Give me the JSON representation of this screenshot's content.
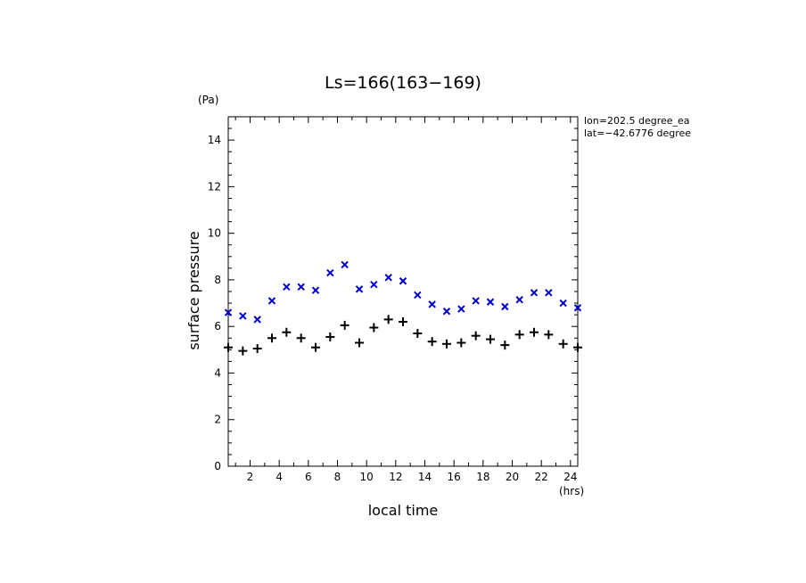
{
  "chart_data": {
    "type": "scatter",
    "title": "Ls=166(163−169)",
    "xlabel": "local time",
    "ylabel": "surface pressure",
    "x_unit": "(hrs)",
    "y_unit": "(Pa)",
    "annotations": [
      "lon=202.5 degree_ea",
      "lat=−42.6776 degree"
    ],
    "xlim": [
      0.5,
      24.5
    ],
    "ylim": [
      0,
      15
    ],
    "x_ticks": [
      2,
      4,
      6,
      8,
      10,
      12,
      14,
      16,
      18,
      20,
      22,
      24
    ],
    "y_ticks": [
      0,
      2,
      4,
      6,
      8,
      10,
      12,
      14
    ],
    "x_tick_labels": [
      "2",
      "4",
      "6",
      "8",
      "10",
      "12",
      "14",
      "16",
      "18",
      "20",
      "22",
      "24"
    ],
    "y_tick_labels": [
      "0",
      "2",
      "4",
      "6",
      "8",
      "10",
      "12",
      "14"
    ],
    "grid": false,
    "series": [
      {
        "marker": "x",
        "color": "#0000cc",
        "x": [
          0.5,
          1.5,
          2.5,
          3.5,
          4.5,
          5.5,
          6.5,
          7.5,
          8.5,
          9.5,
          10.5,
          11.5,
          12.5,
          13.5,
          14.5,
          15.5,
          16.5,
          17.5,
          18.5,
          19.5,
          20.5,
          21.5,
          22.5,
          23.5,
          24.5
        ],
        "values": [
          6.6,
          6.45,
          6.3,
          7.1,
          7.7,
          7.7,
          7.55,
          8.3,
          8.65,
          7.6,
          7.8,
          8.1,
          7.95,
          7.35,
          6.95,
          6.65,
          6.75,
          7.1,
          7.05,
          6.85,
          7.15,
          7.45,
          7.45,
          7.0,
          6.8
        ]
      },
      {
        "marker": "+",
        "color": "#000000",
        "x": [
          0.5,
          1.5,
          2.5,
          3.5,
          4.5,
          5.5,
          6.5,
          7.5,
          8.5,
          9.5,
          10.5,
          11.5,
          12.5,
          13.5,
          14.5,
          15.5,
          16.5,
          17.5,
          18.5,
          19.5,
          20.5,
          21.5,
          22.5,
          23.5,
          24.5
        ],
        "values": [
          5.1,
          4.95,
          5.05,
          5.5,
          5.75,
          5.5,
          5.1,
          5.55,
          6.05,
          5.3,
          5.95,
          6.3,
          6.2,
          5.7,
          5.35,
          5.25,
          5.3,
          5.6,
          5.45,
          5.2,
          5.65,
          5.75,
          5.65,
          5.25,
          5.1
        ]
      }
    ]
  }
}
